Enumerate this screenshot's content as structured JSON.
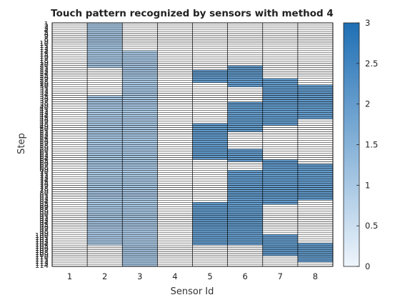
{
  "chart_data": {
    "type": "heatmap",
    "title": "Touch pattern recognized by sensors with method 4",
    "xlabel": "Sensor Id",
    "ylabel": "Step",
    "x_categories": [
      "1",
      "2",
      "3",
      "4",
      "5",
      "6",
      "7",
      "8"
    ],
    "y_steps": 114,
    "y_tick_labels": [
      "1",
      "2",
      "3",
      "4",
      "5",
      "6",
      "7",
      "8",
      "9",
      "10",
      "11",
      "12",
      "13",
      "14",
      "15",
      "16",
      "17",
      "18",
      "19",
      "20",
      "21",
      "22",
      "23",
      "24",
      "25",
      "26",
      "27",
      "28",
      "29",
      "30",
      "31",
      "32",
      "33",
      "34",
      "35",
      "36",
      "37",
      "38",
      "39",
      "40",
      "41",
      "42",
      "43",
      "44",
      "45",
      "46",
      "47",
      "48",
      "49",
      "50",
      "51",
      "52",
      "53",
      "54",
      "55",
      "56",
      "57",
      "58",
      "59",
      "60",
      "61",
      "62",
      "63",
      "64",
      "65",
      "66",
      "67",
      "68",
      "69",
      "70",
      "71",
      "72",
      "73",
      "74",
      "75",
      "76",
      "77",
      "78",
      "79",
      "80",
      "81",
      "82",
      "83",
      "84",
      "85",
      "86",
      "87",
      "88",
      "89",
      "90",
      "91",
      "92",
      "93",
      "94",
      "95",
      "96",
      "97",
      "98",
      "99",
      "100",
      "101",
      "102",
      "103",
      "104",
      "105",
      "106",
      "107",
      "108",
      "109",
      "110",
      "111",
      "112",
      "113",
      "114"
    ],
    "colorbar": {
      "min": 0,
      "max": 3,
      "ticks": [
        "0",
        "0.5",
        "1",
        "1.5",
        "2",
        "2.5",
        "3"
      ]
    },
    "colors": {
      "low": "#eef5fc",
      "high": "#1f6fb4",
      "grid": "#000000"
    },
    "active_segments": [
      {
        "sensor": "2",
        "start_step": 1,
        "end_step": 21,
        "value": 1
      },
      {
        "sensor": "3",
        "start_step": 14,
        "end_step": 114,
        "value": 1
      },
      {
        "sensor": "2",
        "start_step": 35,
        "end_step": 104,
        "value": 1
      },
      {
        "sensor": "5",
        "start_step": 23,
        "end_step": 28,
        "value": 2
      },
      {
        "sensor": "6",
        "start_step": 21,
        "end_step": 30,
        "value": 2
      },
      {
        "sensor": "7",
        "start_step": 27,
        "end_step": 48,
        "value": 2
      },
      {
        "sensor": "8",
        "start_step": 30,
        "end_step": 45,
        "value": 2
      },
      {
        "sensor": "6",
        "start_step": 38,
        "end_step": 51,
        "value": 2
      },
      {
        "sensor": "5",
        "start_step": 48,
        "end_step": 64,
        "value": 2
      },
      {
        "sensor": "6",
        "start_step": 60,
        "end_step": 65,
        "value": 2
      },
      {
        "sensor": "7",
        "start_step": 65,
        "end_step": 85,
        "value": 2
      },
      {
        "sensor": "8",
        "start_step": 67,
        "end_step": 83,
        "value": 2
      },
      {
        "sensor": "6",
        "start_step": 70,
        "end_step": 104,
        "value": 2
      },
      {
        "sensor": "5",
        "start_step": 85,
        "end_step": 104,
        "value": 2
      },
      {
        "sensor": "7",
        "start_step": 100,
        "end_step": 109,
        "value": 2
      },
      {
        "sensor": "8",
        "start_step": 104,
        "end_step": 112,
        "value": 2
      }
    ]
  }
}
